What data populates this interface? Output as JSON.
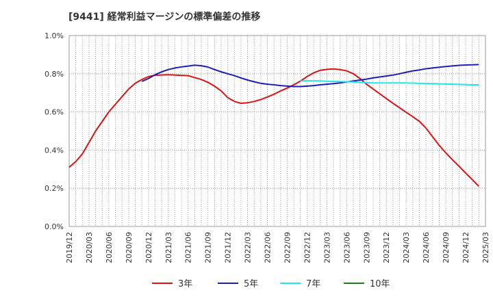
{
  "chart_data": {
    "type": "line",
    "title": "[9441]  経常利益マージンの標準偏差の推移",
    "xlabel": "",
    "ylabel": "",
    "ylim": [
      0,
      1.0
    ],
    "yticks": [
      0.0,
      0.2,
      0.4,
      0.6,
      0.8,
      1.0
    ],
    "ytick_labels": [
      "0.0%",
      "0.2%",
      "0.4%",
      "0.6%",
      "0.8%",
      "1.0%"
    ],
    "x_range": [
      "2019/12",
      "2025/03"
    ],
    "xtick_labels": [
      "2019/12",
      "2020/03",
      "2020/06",
      "2020/09",
      "2020/12",
      "2021/03",
      "2021/06",
      "2021/09",
      "2021/12",
      "2022/03",
      "2022/06",
      "2022/09",
      "2022/12",
      "2023/03",
      "2023/06",
      "2023/09",
      "2023/12",
      "2024/03",
      "2024/06",
      "2024/09",
      "2024/12",
      "2025/03"
    ],
    "grid": true,
    "legend_position": "bottom",
    "series": [
      {
        "name": "3年",
        "color": "#dd1111",
        "points": [
          [
            "2019/12",
            0.31
          ],
          [
            "2020/01",
            0.34
          ],
          [
            "2020/02",
            0.38
          ],
          [
            "2020/03",
            0.44
          ],
          [
            "2020/04",
            0.5
          ],
          [
            "2020/05",
            0.55
          ],
          [
            "2020/06",
            0.6
          ],
          [
            "2020/07",
            0.64
          ],
          [
            "2020/08",
            0.68
          ],
          [
            "2020/09",
            0.72
          ],
          [
            "2020/10",
            0.75
          ],
          [
            "2020/11",
            0.77
          ],
          [
            "2020/12",
            0.785
          ],
          [
            "2021/01",
            0.792
          ],
          [
            "2021/03",
            0.795
          ],
          [
            "2021/06",
            0.79
          ],
          [
            "2021/07",
            0.78
          ],
          [
            "2021/08",
            0.77
          ],
          [
            "2021/09",
            0.755
          ],
          [
            "2021/10",
            0.735
          ],
          [
            "2021/11",
            0.71
          ],
          [
            "2021/12",
            0.675
          ],
          [
            "2022/01",
            0.655
          ],
          [
            "2022/02",
            0.645
          ],
          [
            "2022/03",
            0.648
          ],
          [
            "2022/04",
            0.655
          ],
          [
            "2022/05",
            0.665
          ],
          [
            "2022/06",
            0.678
          ],
          [
            "2022/07",
            0.693
          ],
          [
            "2022/08",
            0.71
          ],
          [
            "2022/09",
            0.725
          ],
          [
            "2022/10",
            0.742
          ],
          [
            "2022/11",
            0.762
          ],
          [
            "2022/12",
            0.785
          ],
          [
            "2023/01",
            0.805
          ],
          [
            "2023/02",
            0.818
          ],
          [
            "2023/03",
            0.823
          ],
          [
            "2023/04",
            0.825
          ],
          [
            "2023/05",
            0.822
          ],
          [
            "2023/06",
            0.815
          ],
          [
            "2023/07",
            0.8
          ],
          [
            "2023/08",
            0.775
          ],
          [
            "2023/09",
            0.745
          ],
          [
            "2023/10",
            0.72
          ],
          [
            "2023/11",
            0.695
          ],
          [
            "2023/12",
            0.67
          ],
          [
            "2024/01",
            0.645
          ],
          [
            "2024/02",
            0.622
          ],
          [
            "2024/03",
            0.598
          ],
          [
            "2024/04",
            0.575
          ],
          [
            "2024/05",
            0.55
          ],
          [
            "2024/06",
            0.515
          ],
          [
            "2024/07",
            0.47
          ],
          [
            "2024/08",
            0.425
          ],
          [
            "2024/09",
            0.385
          ],
          [
            "2024/10",
            0.35
          ],
          [
            "2024/11",
            0.315
          ],
          [
            "2024/12",
            0.28
          ],
          [
            "2025/01",
            0.245
          ],
          [
            "2025/02",
            0.21
          ]
        ]
      },
      {
        "name": "5年",
        "color": "#1c1cbb",
        "points": [
          [
            "2020/11",
            0.76
          ],
          [
            "2020/12",
            0.775
          ],
          [
            "2021/01",
            0.795
          ],
          [
            "2021/02",
            0.81
          ],
          [
            "2021/03",
            0.822
          ],
          [
            "2021/04",
            0.83
          ],
          [
            "2021/05",
            0.836
          ],
          [
            "2021/06",
            0.84
          ],
          [
            "2021/07",
            0.845
          ],
          [
            "2021/08",
            0.842
          ],
          [
            "2021/09",
            0.835
          ],
          [
            "2021/10",
            0.822
          ],
          [
            "2021/11",
            0.81
          ],
          [
            "2021/12",
            0.8
          ],
          [
            "2022/01",
            0.79
          ],
          [
            "2022/02",
            0.778
          ],
          [
            "2022/03",
            0.767
          ],
          [
            "2022/04",
            0.758
          ],
          [
            "2022/05",
            0.75
          ],
          [
            "2022/06",
            0.745
          ],
          [
            "2022/07",
            0.742
          ],
          [
            "2022/08",
            0.738
          ],
          [
            "2022/09",
            0.735
          ],
          [
            "2022/10",
            0.733
          ],
          [
            "2022/11",
            0.733
          ],
          [
            "2022/12",
            0.735
          ],
          [
            "2023/01",
            0.738
          ],
          [
            "2023/02",
            0.742
          ],
          [
            "2023/03",
            0.745
          ],
          [
            "2023/04",
            0.748
          ],
          [
            "2023/05",
            0.752
          ],
          [
            "2023/06",
            0.757
          ],
          [
            "2023/07",
            0.762
          ],
          [
            "2023/08",
            0.767
          ],
          [
            "2023/09",
            0.772
          ],
          [
            "2023/10",
            0.778
          ],
          [
            "2023/11",
            0.783
          ],
          [
            "2023/12",
            0.788
          ],
          [
            "2024/01",
            0.793
          ],
          [
            "2024/02",
            0.8
          ],
          [
            "2024/03",
            0.808
          ],
          [
            "2024/04",
            0.815
          ],
          [
            "2024/05",
            0.82
          ],
          [
            "2024/06",
            0.826
          ],
          [
            "2024/07",
            0.83
          ],
          [
            "2024/08",
            0.834
          ],
          [
            "2024/09",
            0.838
          ],
          [
            "2024/10",
            0.841
          ],
          [
            "2024/11",
            0.844
          ],
          [
            "2024/12",
            0.846
          ],
          [
            "2025/01",
            0.847
          ],
          [
            "2025/02",
            0.848
          ]
        ]
      },
      {
        "name": "7年",
        "color": "#22e5e5",
        "points": [
          [
            "2022/11",
            0.762
          ],
          [
            "2022/12",
            0.763
          ],
          [
            "2023/01",
            0.763
          ],
          [
            "2023/02",
            0.762
          ],
          [
            "2023/03",
            0.761
          ],
          [
            "2023/04",
            0.76
          ],
          [
            "2023/05",
            0.759
          ],
          [
            "2023/06",
            0.758
          ],
          [
            "2023/07",
            0.757
          ],
          [
            "2023/08",
            0.755
          ],
          [
            "2023/09",
            0.753
          ],
          [
            "2023/10",
            0.752
          ],
          [
            "2023/11",
            0.752
          ],
          [
            "2023/12",
            0.752
          ],
          [
            "2024/01",
            0.752
          ],
          [
            "2024/02",
            0.752
          ],
          [
            "2024/03",
            0.752
          ],
          [
            "2024/04",
            0.751
          ],
          [
            "2024/05",
            0.75
          ],
          [
            "2024/06",
            0.749
          ],
          [
            "2024/07",
            0.748
          ],
          [
            "2024/08",
            0.747
          ],
          [
            "2024/09",
            0.746
          ],
          [
            "2024/10",
            0.745
          ],
          [
            "2024/11",
            0.744
          ],
          [
            "2024/12",
            0.743
          ],
          [
            "2025/01",
            0.742
          ],
          [
            "2025/02",
            0.742
          ]
        ]
      },
      {
        "name": "10年",
        "color": "#1f7a1f",
        "points": []
      }
    ]
  }
}
